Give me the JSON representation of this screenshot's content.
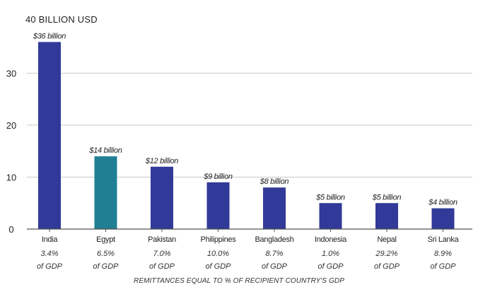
{
  "chart_data": {
    "type": "bar",
    "ylabel": "40 BILLION USD",
    "xlabel": "REMITTANCES EQUAL TO % OF RECIPIENT COUNTRY'S GDP",
    "ylim": [
      0,
      40
    ],
    "yticks": [
      0,
      10,
      20,
      30,
      40
    ],
    "yticks_displayed": [
      "0",
      "10",
      "20",
      "30"
    ],
    "grid": true,
    "categories": [
      "India",
      "Egypt",
      "Pakistan",
      "Philippines",
      "Bangladesh",
      "Indonesia",
      "Nepal",
      "Sri Lanka"
    ],
    "values": [
      36,
      14,
      12,
      9,
      8,
      5,
      5,
      4
    ],
    "value_labels": [
      "$36 billion",
      "$14 billion",
      "$12 billion",
      "$9 billion",
      "$8 billion",
      "$5 billion",
      "$5 billion",
      "$4 billion"
    ],
    "gdp_share": [
      "3.4%",
      "6.5%",
      "7.0%",
      "10.0%",
      "8.7%",
      "1.0%",
      "29.2%",
      "8.9%"
    ],
    "gdp_suffix": "of GDP",
    "bar_colors": [
      "#313a98",
      "#217f93",
      "#313a98",
      "#313a98",
      "#313a98",
      "#313a98",
      "#313a98",
      "#313a98"
    ]
  }
}
